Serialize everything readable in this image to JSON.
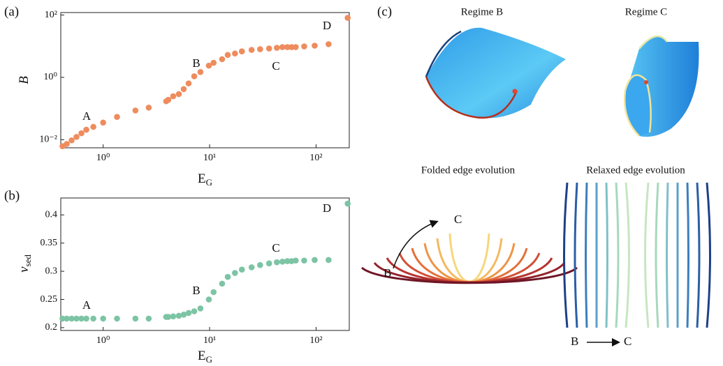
{
  "chart_data": [
    {
      "type": "scatter",
      "panel_label": "(a)",
      "x_label": {
        "main": "E",
        "sub": "G"
      },
      "y_label": {
        "main": "B"
      },
      "xscale": "log",
      "yscale": "log",
      "color": "#ee8c5e",
      "x": [
        0.415,
        0.455,
        0.506,
        0.562,
        0.625,
        0.695,
        0.809,
        1.0,
        1.35,
        2.01,
        2.68,
        3.91,
        4.09,
        4.55,
        5.14,
        5.71,
        6.35,
        7.17,
        8.2,
        9.84,
        10.9,
        13.1,
        14.8,
        17.3,
        20.1,
        24.8,
        29.8,
        36.2,
        42.8,
        48.3,
        53.7,
        58.9,
        64.4,
        77.3,
        97,
        131,
        198
      ],
      "values": [
        0.0062,
        0.0073,
        0.0095,
        0.0123,
        0.0161,
        0.0209,
        0.0258,
        0.0354,
        0.0538,
        0.0865,
        0.107,
        0.171,
        0.19,
        0.248,
        0.29,
        0.42,
        0.64,
        1.08,
        1.48,
        2.38,
        2.94,
        3.83,
        5.25,
        5.83,
        6.83,
        7.59,
        8.0,
        8.43,
        8.89,
        9.36,
        9.36,
        9.36,
        9.36,
        9.86,
        10.4,
        11.6,
        81.1
      ],
      "xlim": [
        0.4,
        205
      ],
      "ylim": [
        0.0055,
        120
      ],
      "xticks": [
        {
          "value": 1,
          "label": "10⁰"
        },
        {
          "value": 10,
          "label": "10¹"
        },
        {
          "value": 100,
          "label": "10²"
        }
      ],
      "yticks": [
        {
          "value": 0.01,
          "label": "10⁻²"
        },
        {
          "value": 1,
          "label": "10⁰"
        },
        {
          "value": 100,
          "label": "10²"
        }
      ],
      "annotations": [
        "A",
        "B",
        "C",
        "D"
      ]
    },
    {
      "type": "scatter",
      "panel_label": "(b)",
      "x_label": {
        "main": "E",
        "sub": "G"
      },
      "y_label": {
        "main": "v",
        "sub": "sed"
      },
      "xscale": "log",
      "yscale": "linear",
      "color": "#7cc4a4",
      "x": [
        0.415,
        0.455,
        0.506,
        0.562,
        0.625,
        0.695,
        0.809,
        1.0,
        1.35,
        2.01,
        2.68,
        3.91,
        4.09,
        4.55,
        5.14,
        5.71,
        6.35,
        7.17,
        8.2,
        9.84,
        10.9,
        13.1,
        14.8,
        17.3,
        20.1,
        24.8,
        29.8,
        36.2,
        42.8,
        48.3,
        53.7,
        58.9,
        64.4,
        77.3,
        97,
        131,
        198
      ],
      "values": [
        0.216,
        0.216,
        0.216,
        0.216,
        0.216,
        0.216,
        0.216,
        0.216,
        0.216,
        0.216,
        0.216,
        0.219,
        0.219,
        0.22,
        0.221,
        0.223,
        0.226,
        0.229,
        0.234,
        0.25,
        0.263,
        0.278,
        0.29,
        0.297,
        0.303,
        0.307,
        0.311,
        0.314,
        0.316,
        0.317,
        0.318,
        0.318,
        0.319,
        0.319,
        0.32,
        0.32,
        0.42
      ],
      "xlim": [
        0.4,
        205
      ],
      "ylim": [
        0.195,
        0.43
      ],
      "xticks": [
        {
          "value": 1,
          "label": "10⁰"
        },
        {
          "value": 10,
          "label": "10¹"
        },
        {
          "value": 100,
          "label": "10²"
        }
      ],
      "yticks": [
        0.2,
        0.25,
        0.3,
        0.35,
        0.4
      ],
      "annotations": [
        "A",
        "B",
        "C",
        "D"
      ]
    }
  ],
  "illustrations": {
    "panel_label": "(c)",
    "regime_b": "Regime B",
    "regime_c": "Regime C",
    "folded_title": "Folded edge evolution",
    "relaxed_title": "Relaxed edge evolution",
    "folded_start": "B",
    "folded_end": "C",
    "relaxed_start": "B",
    "relaxed_end": "C"
  }
}
